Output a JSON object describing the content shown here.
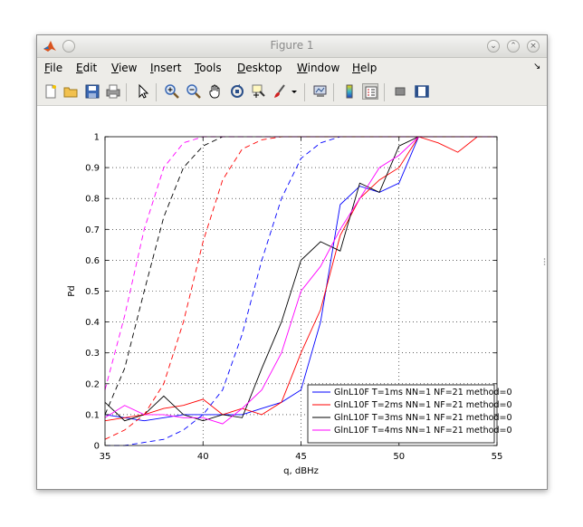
{
  "window": {
    "title": "Figure 1"
  },
  "menu": [
    {
      "pre": "",
      "u": "F",
      "post": "ile"
    },
    {
      "pre": "",
      "u": "E",
      "post": "dit"
    },
    {
      "pre": "",
      "u": "V",
      "post": "iew"
    },
    {
      "pre": "",
      "u": "I",
      "post": "nsert"
    },
    {
      "pre": "",
      "u": "T",
      "post": "ools"
    },
    {
      "pre": "",
      "u": "D",
      "post": "esktop"
    },
    {
      "pre": "",
      "u": "W",
      "post": "indow"
    },
    {
      "pre": "",
      "u": "H",
      "post": "elp"
    }
  ],
  "toolbar_icons": [
    "new-file-icon",
    "open-folder-icon",
    "save-icon",
    "print-icon",
    "pointer-arrow-icon",
    "zoom-in-icon",
    "zoom-out-icon",
    "pan-hand-icon",
    "rotate-3d-icon",
    "data-cursor-icon",
    "brush-icon",
    "dropdown-arrow-icon",
    "link-plot-icon",
    "colorbar-icon",
    "legend-icon",
    "hide-plot-tools-icon",
    "show-plot-tools-icon"
  ],
  "chart_data": {
    "type": "line",
    "xlabel": "q, dBHz",
    "ylabel": "Pd",
    "xlim": [
      35,
      55
    ],
    "ylim": [
      0,
      1
    ],
    "xticks": [
      35,
      40,
      45,
      50,
      55
    ],
    "yticks": [
      0,
      0.1,
      0.2,
      0.3,
      0.4,
      0.5,
      0.6,
      0.7,
      0.8,
      0.9,
      1
    ],
    "ytick_labels": [
      "0",
      "0.1",
      "0.2",
      "0.3",
      "0.4",
      "0.5",
      "0.6",
      "0.7",
      "0.8",
      "0.9",
      "1"
    ],
    "grid": true,
    "legend_position": "bottom-right",
    "series": [
      {
        "name": "GlnL10F T=1ms NN=1 NF=21 method=0",
        "color": "#0000ff",
        "style": "solid",
        "x": [
          35,
          36,
          37,
          38,
          39,
          40,
          41,
          42,
          43,
          44,
          45,
          46,
          47,
          48,
          49,
          50,
          51,
          52,
          53,
          54,
          55
        ],
        "y": [
          0.1,
          0.09,
          0.08,
          0.09,
          0.1,
          0.1,
          0.1,
          0.1,
          0.12,
          0.14,
          0.18,
          0.4,
          0.78,
          0.84,
          0.82,
          0.85,
          1.0,
          1.0,
          1.0,
          1.0,
          1.0
        ]
      },
      {
        "name": "GlnL10F T=2ms NN=1 NF=21 method=0",
        "color": "#ff0000",
        "style": "solid",
        "x": [
          35,
          36,
          37,
          38,
          39,
          40,
          41,
          42,
          43,
          44,
          45,
          46,
          47,
          48,
          49,
          50,
          51,
          52,
          53,
          54,
          55
        ],
        "y": [
          0.08,
          0.09,
          0.1,
          0.12,
          0.13,
          0.15,
          0.1,
          0.12,
          0.1,
          0.14,
          0.3,
          0.44,
          0.68,
          0.8,
          0.86,
          0.9,
          1.0,
          0.98,
          0.95,
          1.0,
          1.0
        ]
      },
      {
        "name": "GlnL10F T=3ms NN=1 NF=21 method=0",
        "color": "#000000",
        "style": "solid",
        "x": [
          35,
          36,
          37,
          38,
          39,
          40,
          41,
          42,
          43,
          44,
          45,
          46,
          47,
          48,
          49,
          50,
          51,
          52,
          53,
          54,
          55
        ],
        "y": [
          0.14,
          0.08,
          0.1,
          0.16,
          0.1,
          0.08,
          0.1,
          0.09,
          0.25,
          0.4,
          0.6,
          0.66,
          0.63,
          0.85,
          0.82,
          0.97,
          1.0,
          1.0,
          1.0,
          1.0,
          1.0
        ]
      },
      {
        "name": "GlnL10F T=4ms NN=1 NF=21 method=0",
        "color": "#ff00ff",
        "style": "solid",
        "x": [
          35,
          36,
          37,
          38,
          39,
          40,
          41,
          42,
          43,
          44,
          45,
          46,
          47,
          48,
          49,
          50,
          51,
          52,
          53,
          54,
          55
        ],
        "y": [
          0.09,
          0.13,
          0.1,
          0.1,
          0.09,
          0.09,
          0.07,
          0.12,
          0.18,
          0.3,
          0.5,
          0.58,
          0.7,
          0.8,
          0.9,
          0.94,
          1.0,
          1.0,
          1.0,
          1.0,
          1.0
        ]
      },
      {
        "name": "",
        "color": "#0000ff",
        "style": "dashed",
        "x": [
          35,
          36,
          37,
          38,
          39,
          40,
          41,
          42,
          43,
          44,
          45,
          46,
          47,
          48,
          49,
          50,
          51,
          52,
          53,
          54,
          55
        ],
        "y": [
          0.0,
          0.0,
          0.01,
          0.02,
          0.05,
          0.1,
          0.18,
          0.36,
          0.6,
          0.8,
          0.93,
          0.98,
          1.0,
          1.0,
          1.0,
          1.0,
          1.0,
          1.0,
          1.0,
          1.0,
          1.0
        ]
      },
      {
        "name": "",
        "color": "#ff0000",
        "style": "dashed",
        "x": [
          35,
          36,
          37,
          38,
          39,
          40,
          41,
          42,
          43,
          44,
          45,
          46,
          47,
          48,
          49,
          50,
          51,
          52,
          53,
          54,
          55
        ],
        "y": [
          0.02,
          0.05,
          0.1,
          0.2,
          0.4,
          0.66,
          0.86,
          0.96,
          0.99,
          1.0,
          1.0,
          1.0,
          1.0,
          1.0,
          1.0,
          1.0,
          1.0,
          1.0,
          1.0,
          1.0,
          1.0
        ]
      },
      {
        "name": "",
        "color": "#000000",
        "style": "dashed",
        "x": [
          35,
          36,
          37,
          38,
          39,
          40,
          41,
          42,
          43,
          44,
          45,
          46,
          47,
          48,
          49,
          50,
          51,
          52,
          53,
          54,
          55
        ],
        "y": [
          0.1,
          0.25,
          0.5,
          0.74,
          0.9,
          0.97,
          1.0,
          1.0,
          1.0,
          1.0,
          1.0,
          1.0,
          1.0,
          1.0,
          1.0,
          1.0,
          1.0,
          1.0,
          1.0,
          1.0,
          1.0
        ]
      },
      {
        "name": "",
        "color": "#ff00ff",
        "style": "dashed",
        "x": [
          35,
          36,
          37,
          38,
          39,
          40,
          41,
          42,
          43,
          44,
          45,
          46,
          47,
          48,
          49,
          50,
          51,
          52,
          53,
          54,
          55
        ],
        "y": [
          0.18,
          0.42,
          0.7,
          0.9,
          0.98,
          1.0,
          1.0,
          1.0,
          1.0,
          1.0,
          1.0,
          1.0,
          1.0,
          1.0,
          1.0,
          1.0,
          1.0,
          1.0,
          1.0,
          1.0,
          1.0
        ]
      }
    ]
  }
}
